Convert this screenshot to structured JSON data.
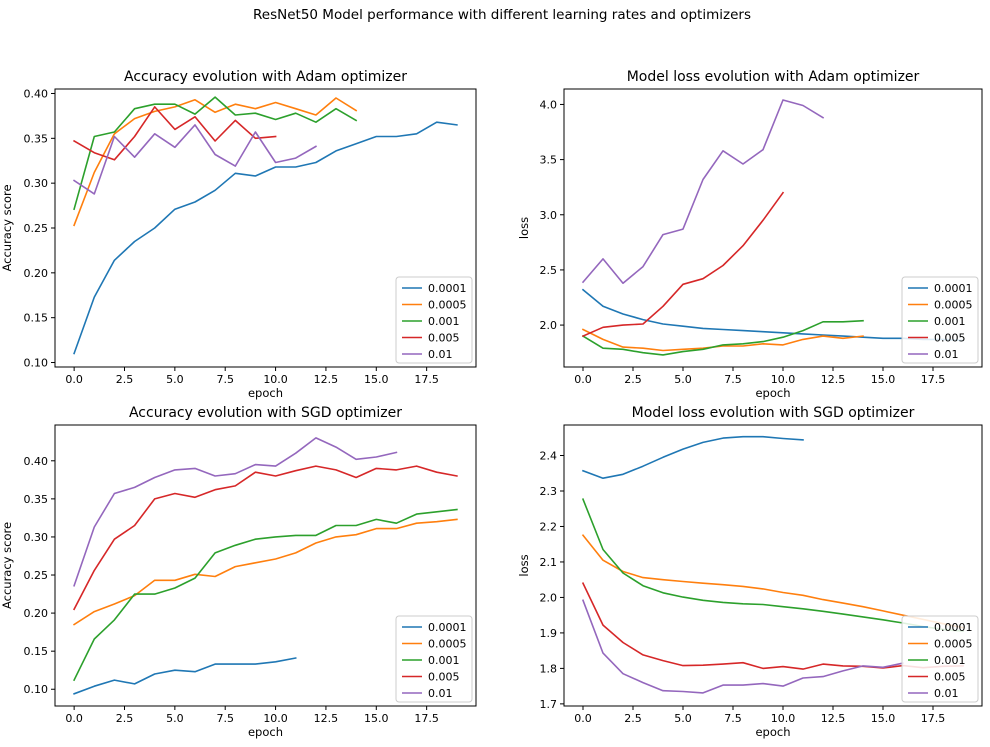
{
  "figure": {
    "suptitle": "ResNet50 Model performance with different learning rates and optimizers"
  },
  "colors": [
    "#1f77b4",
    "#ff7f0e",
    "#2ca02c",
    "#d62728",
    "#9467bd"
  ],
  "chart_data": [
    {
      "type": "line",
      "title": "Accuracy evolution with Adam optimizer",
      "xlabel": "epoch",
      "ylabel": "Accuracy score",
      "xlim": [
        -0.95,
        19.95
      ],
      "ylim": [
        0.095,
        0.405
      ],
      "xticks": [
        0.0,
        2.5,
        5.0,
        7.5,
        10.0,
        12.5,
        15.0,
        17.5
      ],
      "yticks": [
        0.1,
        0.15,
        0.2,
        0.25,
        0.3,
        0.35,
        0.4
      ],
      "ytick_decimals": 2,
      "legend": "lower-right",
      "series": [
        {
          "name": "0.0001",
          "values": [
            0.11,
            0.173,
            0.214,
            0.235,
            0.25,
            0.271,
            0.279,
            0.292,
            0.311,
            0.308,
            0.318,
            0.318,
            0.323,
            0.336,
            0.344,
            0.352,
            0.352,
            0.355,
            0.368,
            0.365
          ]
        },
        {
          "name": "0.0005",
          "values": [
            0.253,
            0.312,
            0.355,
            0.372,
            0.38,
            0.385,
            0.393,
            0.379,
            0.388,
            0.383,
            0.39,
            0.383,
            0.376,
            0.395,
            0.381
          ]
        },
        {
          "name": "0.001",
          "values": [
            0.271,
            0.352,
            0.357,
            0.383,
            0.388,
            0.388,
            0.377,
            0.396,
            0.376,
            0.378,
            0.371,
            0.378,
            0.368,
            0.383,
            0.37
          ]
        },
        {
          "name": "0.005",
          "values": [
            0.347,
            0.334,
            0.326,
            0.352,
            0.385,
            0.36,
            0.374,
            0.347,
            0.37,
            0.35,
            0.352
          ]
        },
        {
          "name": "0.01",
          "values": [
            0.303,
            0.288,
            0.352,
            0.329,
            0.355,
            0.34,
            0.365,
            0.332,
            0.319,
            0.357,
            0.323,
            0.328,
            0.341
          ]
        }
      ]
    },
    {
      "type": "line",
      "title": "Model loss evolution with Adam optimizer",
      "xlabel": "epoch",
      "ylabel": "loss",
      "xlim": [
        -0.95,
        19.95
      ],
      "ylim": [
        1.62,
        4.14
      ],
      "xticks": [
        0.0,
        2.5,
        5.0,
        7.5,
        10.0,
        12.5,
        15.0,
        17.5
      ],
      "yticks": [
        2.0,
        2.5,
        3.0,
        3.5,
        4.0
      ],
      "ytick_decimals": 1,
      "legend": "lower-right",
      "series": [
        {
          "name": "0.0001",
          "values": [
            2.32,
            2.17,
            2.1,
            2.05,
            2.01,
            1.99,
            1.97,
            1.96,
            1.95,
            1.94,
            1.93,
            1.92,
            1.91,
            1.9,
            1.89,
            1.88,
            1.88,
            1.87,
            1.87,
            1.86
          ]
        },
        {
          "name": "0.0005",
          "values": [
            1.96,
            1.87,
            1.8,
            1.79,
            1.77,
            1.78,
            1.79,
            1.81,
            1.81,
            1.83,
            1.82,
            1.87,
            1.9,
            1.88,
            1.9
          ]
        },
        {
          "name": "0.001",
          "values": [
            1.9,
            1.79,
            1.78,
            1.75,
            1.73,
            1.76,
            1.78,
            1.82,
            1.83,
            1.85,
            1.89,
            1.95,
            2.03,
            2.03,
            2.04
          ]
        },
        {
          "name": "0.005",
          "values": [
            1.9,
            1.98,
            2.0,
            2.01,
            2.17,
            2.37,
            2.42,
            2.54,
            2.72,
            2.95,
            3.2
          ]
        },
        {
          "name": "0.01",
          "values": [
            2.39,
            2.6,
            2.38,
            2.53,
            2.82,
            2.87,
            3.32,
            3.58,
            3.46,
            3.59,
            4.04,
            3.99,
            3.88
          ]
        }
      ]
    },
    {
      "type": "line",
      "title": "Accuracy evolution with SGD optimizer",
      "xlabel": "epoch",
      "ylabel": "Accuracy score",
      "xlim": [
        -0.95,
        19.95
      ],
      "ylim": [
        0.078,
        0.447
      ],
      "xticks": [
        0.0,
        2.5,
        5.0,
        7.5,
        10.0,
        12.5,
        15.0,
        17.5
      ],
      "yticks": [
        0.1,
        0.15,
        0.2,
        0.25,
        0.3,
        0.35,
        0.4
      ],
      "ytick_decimals": 2,
      "legend": "lower-right",
      "series": [
        {
          "name": "0.0001",
          "values": [
            0.094,
            0.104,
            0.112,
            0.107,
            0.12,
            0.125,
            0.123,
            0.133,
            0.133,
            0.133,
            0.136,
            0.141
          ]
        },
        {
          "name": "0.0005",
          "values": [
            0.185,
            0.202,
            0.212,
            0.223,
            0.243,
            0.243,
            0.251,
            0.248,
            0.261,
            0.266,
            0.271,
            0.279,
            0.292,
            0.3,
            0.303,
            0.311,
            0.311,
            0.318,
            0.32,
            0.323
          ]
        },
        {
          "name": "0.001",
          "values": [
            0.112,
            0.166,
            0.191,
            0.225,
            0.225,
            0.233,
            0.246,
            0.279,
            0.289,
            0.297,
            0.3,
            0.302,
            0.302,
            0.315,
            0.315,
            0.323,
            0.318,
            0.33,
            0.333,
            0.336
          ]
        },
        {
          "name": "0.005",
          "values": [
            0.205,
            0.256,
            0.297,
            0.315,
            0.35,
            0.357,
            0.352,
            0.362,
            0.367,
            0.385,
            0.38,
            0.387,
            0.393,
            0.388,
            0.378,
            0.39,
            0.388,
            0.393,
            0.385,
            0.38
          ]
        },
        {
          "name": "0.01",
          "values": [
            0.236,
            0.313,
            0.357,
            0.365,
            0.378,
            0.388,
            0.39,
            0.38,
            0.383,
            0.395,
            0.393,
            0.41,
            0.43,
            0.418,
            0.402,
            0.405,
            0.411
          ]
        }
      ]
    },
    {
      "type": "line",
      "title": "Model loss evolution with SGD optimizer",
      "xlabel": "epoch",
      "ylabel": "loss",
      "xlim": [
        -0.95,
        19.95
      ],
      "ylim": [
        1.694,
        2.486
      ],
      "xticks": [
        0.0,
        2.5,
        5.0,
        7.5,
        10.0,
        12.5,
        15.0,
        17.5
      ],
      "yticks": [
        1.7,
        1.8,
        1.9,
        2.0,
        2.1,
        2.2,
        2.3,
        2.4
      ],
      "ytick_decimals": 1,
      "legend": "lower-right",
      "series": [
        {
          "name": "0.0001",
          "values": [
            2.357,
            2.336,
            2.347,
            2.37,
            2.395,
            2.418,
            2.437,
            2.449,
            2.453,
            2.453,
            2.448,
            2.444
          ]
        },
        {
          "name": "0.0005",
          "values": [
            2.175,
            2.105,
            2.073,
            2.056,
            2.05,
            2.045,
            2.04,
            2.036,
            2.031,
            2.024,
            2.014,
            2.006,
            1.994,
            1.984,
            1.974,
            1.962,
            1.95,
            1.938,
            1.926,
            1.915
          ]
        },
        {
          "name": "0.001",
          "values": [
            2.277,
            2.135,
            2.069,
            2.033,
            2.013,
            2.001,
            1.992,
            1.986,
            1.982,
            1.98,
            1.974,
            1.968,
            1.961,
            1.953,
            1.945,
            1.937,
            1.928,
            1.918,
            1.91,
            1.905
          ]
        },
        {
          "name": "0.005",
          "values": [
            2.04,
            1.922,
            1.873,
            1.838,
            1.822,
            1.808,
            1.809,
            1.812,
            1.816,
            1.8,
            1.805,
            1.798,
            1.812,
            1.807,
            1.806,
            1.801,
            1.808,
            1.802,
            1.806,
            1.807
          ]
        },
        {
          "name": "0.01",
          "values": [
            1.992,
            1.843,
            1.785,
            1.76,
            1.737,
            1.735,
            1.731,
            1.753,
            1.753,
            1.757,
            1.75,
            1.773,
            1.777,
            1.793,
            1.807,
            1.803,
            1.815
          ]
        }
      ]
    }
  ]
}
